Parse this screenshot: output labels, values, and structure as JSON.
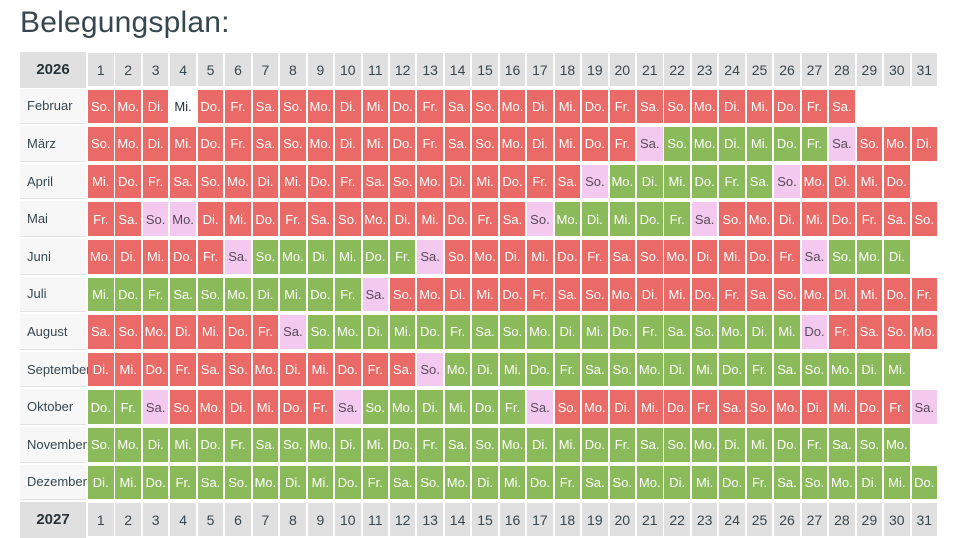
{
  "title": "Belegungsplan:",
  "year_headers": [
    "2026",
    "2027"
  ],
  "day_numbers": [
    "1",
    "2",
    "3",
    "4",
    "5",
    "6",
    "7",
    "8",
    "9",
    "10",
    "11",
    "12",
    "13",
    "14",
    "15",
    "16",
    "17",
    "18",
    "19",
    "20",
    "21",
    "22",
    "23",
    "24",
    "25",
    "26",
    "27",
    "28",
    "29",
    "30",
    "31"
  ],
  "colors": {
    "booked": "#e96a66",
    "free": "#8bba5a",
    "changeover": "#f3c9f0"
  },
  "months": [
    {
      "name": "Februar",
      "days": [
        "So.",
        "Mo.",
        "Di.",
        "Mi.",
        "Do.",
        "Fr.",
        "Sa.",
        "So.",
        "Mo.",
        "Di.",
        "Mi.",
        "Do.",
        "Fr.",
        "Sa.",
        "So.",
        "Mo.",
        "Di.",
        "Mi.",
        "Do.",
        "Fr.",
        "Sa.",
        "So.",
        "Mo.",
        "Di.",
        "Mi.",
        "Do.",
        "Fr.",
        "Sa."
      ],
      "status": "BBBWBBBBBBBBBBBBBBBBBBBBBBBB"
    },
    {
      "name": "März",
      "days": [
        "So.",
        "Mo.",
        "Di.",
        "Mi.",
        "Do.",
        "Fr.",
        "Sa.",
        "So.",
        "Mo.",
        "Di.",
        "Mi.",
        "Do.",
        "Fr.",
        "Sa.",
        "So.",
        "Mo.",
        "Di.",
        "Mi.",
        "Do.",
        "Fr.",
        "Sa.",
        "So.",
        "Mo.",
        "Di.",
        "Mi.",
        "Do.",
        "Fr.",
        "Sa.",
        "So.",
        "Mo.",
        "Di."
      ],
      "status": "BBBBBBBBBBBBBBBBBBBBHGGGGGGHBBB"
    },
    {
      "name": "April",
      "days": [
        "Mi.",
        "Do.",
        "Fr.",
        "Sa.",
        "So.",
        "Mo.",
        "Di.",
        "Mi.",
        "Do.",
        "Fr.",
        "Sa.",
        "So.",
        "Mo.",
        "Di.",
        "Mi.",
        "Do.",
        "Fr.",
        "Sa.",
        "So.",
        "Mo.",
        "Di.",
        "Mi.",
        "Do.",
        "Fr.",
        "Sa.",
        "So.",
        "Mo.",
        "Di.",
        "Mi.",
        "Do."
      ],
      "status": "BBBBBBBBBBBBBBBBBBHGGGGGGHBBBB"
    },
    {
      "name": "Mai",
      "days": [
        "Fr.",
        "Sa.",
        "So.",
        "Mo.",
        "Di.",
        "Mi.",
        "Do.",
        "Fr.",
        "Sa.",
        "So.",
        "Mo.",
        "Di.",
        "Mi.",
        "Do.",
        "Fr.",
        "Sa.",
        "So.",
        "Mo.",
        "Di.",
        "Mi.",
        "Do.",
        "Fr.",
        "Sa.",
        "So.",
        "Mo.",
        "Di.",
        "Mi.",
        "Do.",
        "Fr.",
        "Sa.",
        "So."
      ],
      "status": "BBHHBBBBBBBBBBBBHGGGGGHBBBBBBBB"
    },
    {
      "name": "Juni",
      "days": [
        "Mo.",
        "Di.",
        "Mi.",
        "Do.",
        "Fr.",
        "Sa.",
        "So.",
        "Mo.",
        "Di.",
        "Mi.",
        "Do.",
        "Fr.",
        "Sa.",
        "So.",
        "Mo.",
        "Di.",
        "Mi.",
        "Do.",
        "Fr.",
        "Sa.",
        "So.",
        "Mo.",
        "Di.",
        "Mi.",
        "Do.",
        "Fr.",
        "Sa.",
        "So.",
        "Mo.",
        "Di."
      ],
      "status": "BBBBBHGGGGGGHBBBBBBBBBBBBBHGGG"
    },
    {
      "name": "Juli",
      "days": [
        "Mi.",
        "Do.",
        "Fr.",
        "Sa.",
        "So.",
        "Mo.",
        "Di.",
        "Mi.",
        "Do.",
        "Fr.",
        "Sa.",
        "So.",
        "Mo.",
        "Di.",
        "Mi.",
        "Do.",
        "Fr.",
        "Sa.",
        "So.",
        "Mo.",
        "Di.",
        "Mi.",
        "Do.",
        "Fr.",
        "Sa.",
        "So.",
        "Mo.",
        "Di.",
        "Mi.",
        "Do.",
        "Fr."
      ],
      "status": "GGGGGGGGGGHBBBBBBBBBBBBBBBBBBBB"
    },
    {
      "name": "August",
      "days": [
        "Sa.",
        "So.",
        "Mo.",
        "Di.",
        "Mi.",
        "Do.",
        "Fr.",
        "Sa.",
        "So.",
        "Mo.",
        "Di.",
        "Mi.",
        "Do.",
        "Fr.",
        "Sa.",
        "So.",
        "Mo.",
        "Di.",
        "Mi.",
        "Do.",
        "Fr.",
        "Sa.",
        "So.",
        "Mo.",
        "Di.",
        "Mi.",
        "Do.",
        "Fr.",
        "Sa.",
        "So.",
        "Mo."
      ],
      "status": "BBBBBBBHGGGGGGGGGGGGGGGGGGHBBBB"
    },
    {
      "name": "September",
      "days": [
        "Di.",
        "Mi.",
        "Do.",
        "Fr.",
        "Sa.",
        "So.",
        "Mo.",
        "Di.",
        "Mi.",
        "Do.",
        "Fr.",
        "Sa.",
        "So.",
        "Mo.",
        "Di.",
        "Mi.",
        "Do.",
        "Fr.",
        "Sa.",
        "So.",
        "Mo.",
        "Di.",
        "Mi.",
        "Do.",
        "Fr.",
        "Sa.",
        "So.",
        "Mo.",
        "Di.",
        "Mi."
      ],
      "status": "BBBBBBBBBBBBHGGGGGGGGGGGGGGGGG"
    },
    {
      "name": "Oktober",
      "days": [
        "Do.",
        "Fr.",
        "Sa.",
        "So.",
        "Mo.",
        "Di.",
        "Mi.",
        "Do.",
        "Fr.",
        "Sa.",
        "So.",
        "Mo.",
        "Di.",
        "Mi.",
        "Do.",
        "Fr.",
        "Sa.",
        "So.",
        "Mo.",
        "Di.",
        "Mi.",
        "Do.",
        "Fr.",
        "Sa.",
        "So.",
        "Mo.",
        "Di.",
        "Mi.",
        "Do.",
        "Fr.",
        "Sa."
      ],
      "status": "GGHBBBBBBHGGGGGGHBBBBBBBBBBBBBH"
    },
    {
      "name": "November",
      "days": [
        "So.",
        "Mo.",
        "Di.",
        "Mi.",
        "Do.",
        "Fr.",
        "Sa.",
        "So.",
        "Mo.",
        "Di.",
        "Mi.",
        "Do.",
        "Fr.",
        "Sa.",
        "So.",
        "Mo.",
        "Di.",
        "Mi.",
        "Do.",
        "Fr.",
        "Sa.",
        "So.",
        "Mo.",
        "Di.",
        "Mi.",
        "Do.",
        "Fr.",
        "Sa.",
        "So.",
        "Mo."
      ],
      "status": "GGGGGGGGGGGGGGGGGGGGGGGGGGGGGG"
    },
    {
      "name": "Dezember",
      "days": [
        "Di.",
        "Mi.",
        "Do.",
        "Fr.",
        "Sa.",
        "So.",
        "Mo.",
        "Di.",
        "Mi.",
        "Do.",
        "Fr.",
        "Sa.",
        "So.",
        "Mo.",
        "Di.",
        "Mi.",
        "Do.",
        "Fr.",
        "Sa.",
        "So.",
        "Mo.",
        "Di.",
        "Mi.",
        "Do.",
        "Fr.",
        "Sa.",
        "So.",
        "Mo.",
        "Di.",
        "Mi.",
        "Do."
      ],
      "status": "GGGGGGGGGGGGGGGGGGGGGGGGGGGGGGG"
    }
  ]
}
